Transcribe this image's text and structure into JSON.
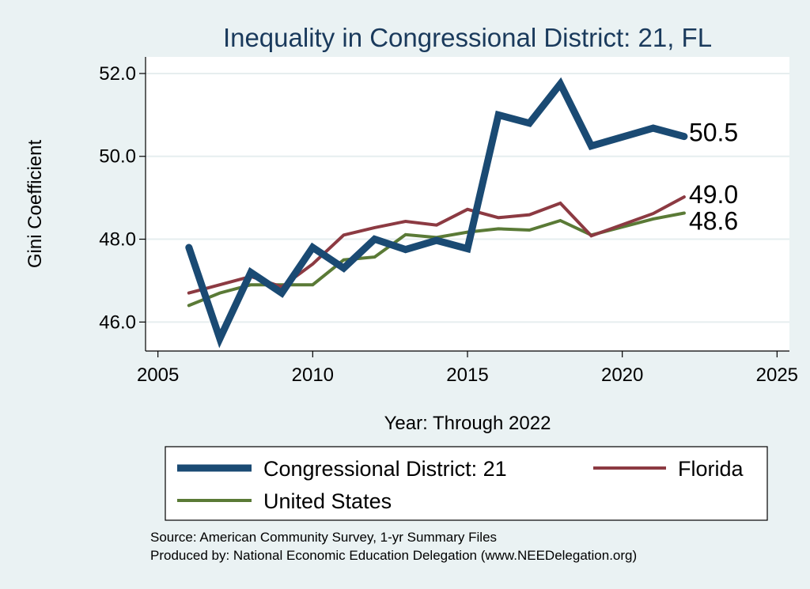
{
  "chart_data": {
    "type": "line",
    "title": "Inequality in Congressional District:  21, FL",
    "xlabel": "Year: Through 2022",
    "ylabel": "Gini Coefficient",
    "xlim": [
      2004.6,
      2025.4
    ],
    "ylim": [
      45.3,
      52.4
    ],
    "x_ticks": [
      2005,
      2010,
      2015,
      2020,
      2025
    ],
    "x_tick_labels": [
      "2005",
      "2010",
      "2015",
      "2020",
      "2025"
    ],
    "y_ticks": [
      46,
      48,
      50,
      52
    ],
    "y_tick_labels": [
      "46.0",
      "48.0",
      "50.0",
      "52.0"
    ],
    "grid": true,
    "x": [
      2006,
      2007,
      2008,
      2009,
      2010,
      2011,
      2012,
      2013,
      2014,
      2015,
      2016,
      2017,
      2018,
      2019,
      2021,
      2022
    ],
    "series": [
      {
        "name": "Congressional District:  21",
        "color": "#1a4a73",
        "values": [
          47.8,
          45.6,
          47.2,
          46.7,
          47.8,
          47.3,
          48.0,
          47.75,
          47.97,
          47.77,
          51.0,
          50.8,
          51.75,
          50.25,
          50.68,
          50.48
        ],
        "end_label": "50.5"
      },
      {
        "name": "Florida",
        "color": "#8c3a42",
        "values": [
          46.7,
          46.9,
          47.1,
          46.85,
          47.4,
          48.1,
          48.28,
          48.43,
          48.34,
          48.72,
          48.52,
          48.59,
          48.87,
          48.08,
          48.62,
          49.02
        ],
        "end_label": "49.0"
      },
      {
        "name": "United States",
        "color": "#5a7a36",
        "values": [
          46.4,
          46.7,
          46.9,
          46.9,
          46.9,
          47.5,
          47.57,
          48.11,
          48.04,
          48.17,
          48.25,
          48.22,
          48.45,
          48.1,
          48.49,
          48.63
        ],
        "end_label": "48.6"
      }
    ],
    "legend": {
      "placement": "bottom",
      "columns": 2
    }
  },
  "source": {
    "line1": "Source: American Community Survey, 1-yr Summary Files",
    "line2": "Produced by: National Economic Education Delegation (www.NEEDelegation.org)"
  }
}
